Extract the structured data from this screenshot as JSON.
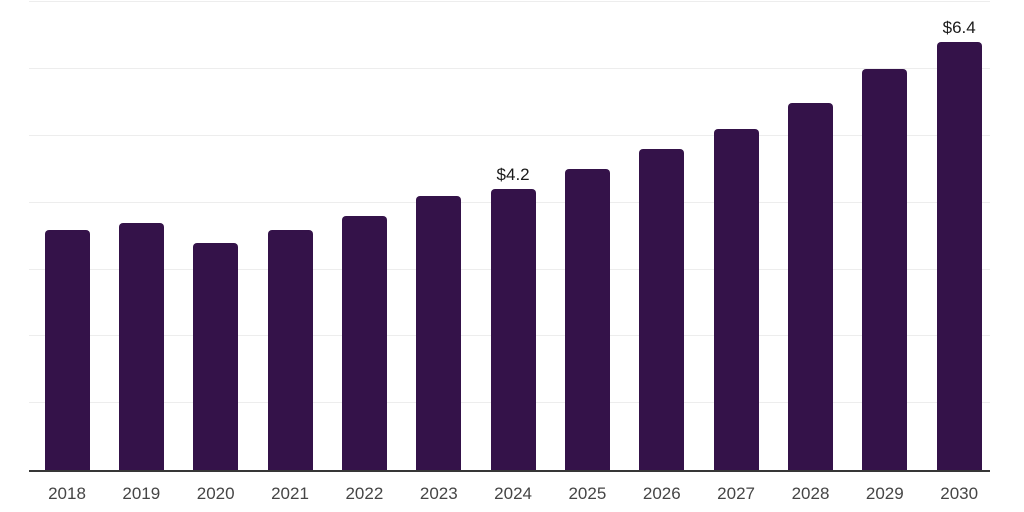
{
  "chart_data": {
    "type": "bar",
    "title": "",
    "categories": [
      "2018",
      "2019",
      "2020",
      "2021",
      "2022",
      "2023",
      "2024",
      "2025",
      "2026",
      "2027",
      "2028",
      "2029",
      "2030"
    ],
    "values": [
      3.6,
      3.7,
      3.4,
      3.6,
      3.8,
      4.1,
      4.2,
      4.5,
      4.8,
      5.1,
      5.5,
      6.0,
      6.4
    ],
    "bar_labels": [
      "",
      "",
      "",
      "",
      "",
      "",
      "$4.2",
      "",
      "",
      "",
      "",
      "",
      "$6.4"
    ],
    "xlabel": "",
    "ylabel": "",
    "ylim": [
      0,
      7
    ],
    "gridline_step": 1,
    "grid": true,
    "legend_position": "none",
    "y_axis_labels_visible": false,
    "colors": {
      "bar": "#341249",
      "gridline": "#ededed",
      "axis_line": "#363636",
      "bar_label_text": "#1a1a1a",
      "tick_label_text": "#454545",
      "background": "#ffffff"
    }
  }
}
